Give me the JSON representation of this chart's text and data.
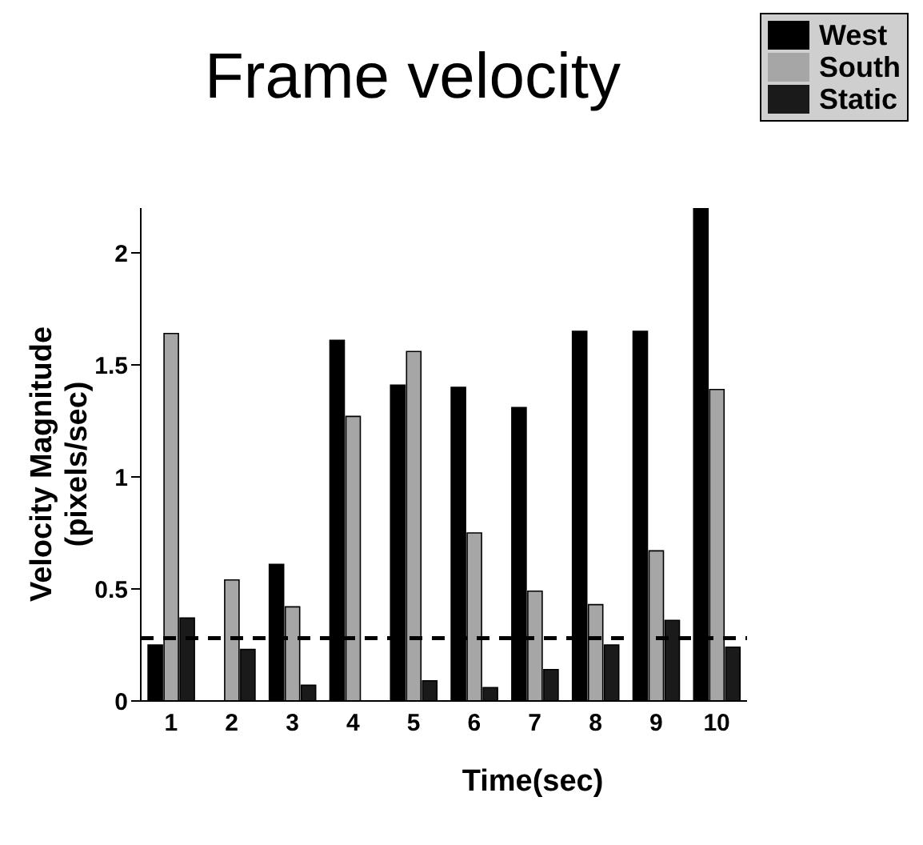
{
  "chart_data": {
    "type": "bar",
    "title": "Frame velocity",
    "xlabel": "Time(sec)",
    "ylabel": "Velocity Magnitude (pixels/sec)",
    "categories": [
      "1",
      "2",
      "3",
      "4",
      "5",
      "6",
      "7",
      "8",
      "9",
      "10"
    ],
    "series": [
      {
        "name": "West",
        "color": "#000000",
        "values": [
          0.25,
          0,
          0.61,
          1.61,
          1.41,
          1.4,
          1.31,
          1.65,
          1.65,
          2.2
        ]
      },
      {
        "name": "South",
        "color": "#a6a6a6",
        "values": [
          1.64,
          0.54,
          0.42,
          1.27,
          1.56,
          0.75,
          0.49,
          0.43,
          0.67,
          1.39
        ]
      },
      {
        "name": "Static",
        "color": "#1a1a1a",
        "values": [
          0.37,
          0.23,
          0.07,
          0,
          0.09,
          0.06,
          0.14,
          0.25,
          0.36,
          0.24
        ]
      }
    ],
    "ylim": [
      0,
      2.2
    ],
    "yticks": [
      0,
      0.5,
      1,
      1.5,
      2
    ],
    "grid": false,
    "legend": "top right",
    "ref_lines": [
      {
        "axis": "y",
        "value": 0.28,
        "color": "#000000",
        "line_style": "dashed"
      }
    ]
  }
}
